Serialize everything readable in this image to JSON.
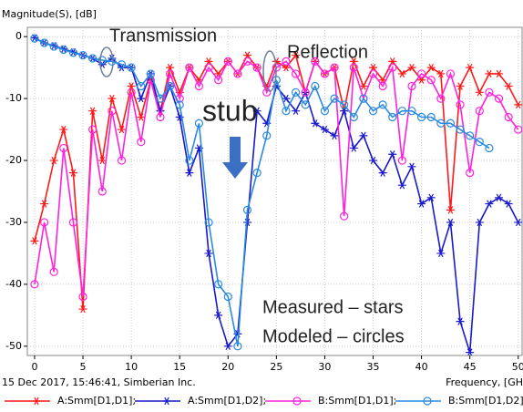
{
  "chart_data": {
    "type": "line",
    "y_label": "Magnitude(S), [dB]",
    "x_label": "Frequency, [GH",
    "footer": "15 Dec 2017, 15:46:41, Simberian Inc.",
    "annotations": [
      "Transmission",
      "Reflection",
      "stub",
      "Measured – stars",
      "Modeled – circles"
    ],
    "x": [
      0,
      1,
      2,
      3,
      4,
      5,
      6,
      7,
      8,
      9,
      10,
      11,
      12,
      13,
      14,
      15,
      16,
      17,
      18,
      19,
      20,
      21,
      22,
      23,
      24,
      25,
      26,
      27,
      28,
      29,
      30,
      31,
      32,
      33,
      34,
      35,
      36,
      37,
      38,
      39,
      40,
      41,
      42,
      43,
      44,
      45,
      46,
      47,
      48,
      49,
      50
    ],
    "series": [
      {
        "name": "A:Smm[D1,D1];",
        "color": "#ff1a1a",
        "marker": "star",
        "values": [
          -33,
          -27,
          -20,
          -15,
          -22,
          -44,
          -12,
          -20,
          -10,
          -15,
          -8,
          -13,
          -7,
          -12,
          -5,
          -9,
          -5,
          -7,
          -4,
          -6,
          -4,
          -6,
          -3,
          -5,
          -8,
          -4,
          -5,
          -3,
          -9,
          -4,
          -6,
          -5,
          -12,
          -4,
          -8,
          -5,
          -7,
          -4,
          -6,
          -5,
          -7,
          -5,
          -6,
          -28,
          -8,
          -5,
          -9,
          -6,
          -6,
          -8,
          -11
        ]
      },
      {
        "name": "A:Smm[D1,D2];",
        "color": "#1a1acc",
        "marker": "star",
        "values": [
          -0.2,
          -1,
          -1.5,
          -2,
          -2.5,
          -3,
          -3.5,
          -4.5,
          -3.5,
          -5,
          -5,
          -10,
          -6,
          -12,
          -8,
          -13,
          -22,
          -18,
          -35,
          -45,
          -50,
          -48,
          -30,
          -12,
          -14,
          -8,
          -10,
          -12,
          -9,
          -14,
          -15,
          -16,
          -12,
          -18,
          -16,
          -20,
          -22,
          -19,
          -24,
          -21,
          -27,
          -26,
          -35,
          -30,
          -46,
          -51,
          -30,
          -27,
          -26,
          -27,
          -30
        ]
      },
      {
        "name": "B:Smm[D1,D1];",
        "color": "#ff22dd",
        "marker": "circle",
        "values": [
          -40,
          -30,
          -38,
          -18,
          -30,
          -42,
          -15,
          -25,
          -12,
          -20,
          -9,
          -17,
          -7,
          -13,
          -6,
          -10,
          -5,
          -8,
          -5,
          -7,
          -4,
          -6,
          -4,
          -5,
          -9,
          -5,
          -4,
          -6,
          -9,
          -4,
          -6,
          -5,
          -29,
          -5,
          -10,
          -6,
          -8,
          -5,
          -20,
          -8,
          -6,
          -7,
          -10,
          -6,
          -11,
          -22,
          -12,
          -9,
          -10,
          -13,
          -15
        ]
      },
      {
        "name": "B:Smm[D1,D2];",
        "color": "#2a8ae0",
        "marker": "circle",
        "values": [
          -0.3,
          -1,
          -1.6,
          -2.1,
          -2.6,
          -3,
          -3.5,
          -3.8,
          -4,
          -4.5,
          -5,
          -8,
          -6,
          -10,
          -8,
          -11,
          -20,
          -14,
          -30,
          -40,
          -42,
          -50,
          -28,
          -22,
          -16,
          -7,
          -12,
          -9,
          -11,
          -8,
          -12,
          -10,
          -11,
          -13,
          -10,
          -12,
          -11,
          -13,
          -12,
          -12,
          -13,
          -13,
          -14,
          -14,
          -15,
          -16,
          -17,
          -18,
          null,
          null,
          null
        ]
      }
    ],
    "xlim": [
      -0.75,
      50.4
    ],
    "ylim": [
      -51.5,
      1.5
    ],
    "xticks": [
      0,
      5,
      10,
      15,
      20,
      25,
      30,
      35,
      40,
      45,
      50
    ],
    "yticks": [
      0,
      -10,
      -20,
      -30,
      -40,
      -50
    ],
    "grid": true
  }
}
